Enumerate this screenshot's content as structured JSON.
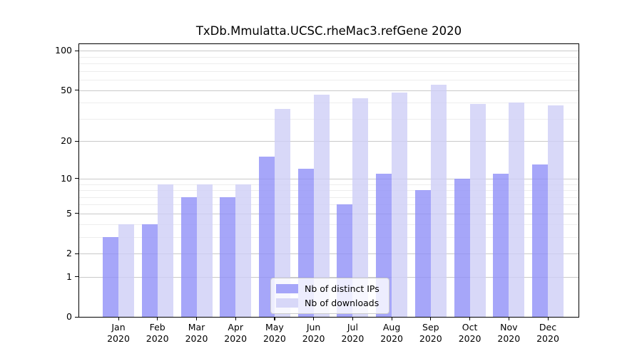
{
  "chart_data": {
    "type": "bar",
    "title": "TxDb.Mmulatta.UCSC.rheMac3.refGene 2020",
    "categories": [
      "Jan 2020",
      "Feb 2020",
      "Mar 2020",
      "Apr 2020",
      "May 2020",
      "Jun 2020",
      "Jul 2020",
      "Aug 2020",
      "Sep 2020",
      "Oct 2020",
      "Nov 2020",
      "Dec 2020"
    ],
    "series": [
      {
        "name": "Nb of distinct IPs",
        "color": "#9090f8",
        "fill_opacity": 0.8,
        "values": [
          3,
          4,
          7,
          7,
          15,
          12,
          6,
          11,
          8,
          10,
          11,
          13
        ]
      },
      {
        "name": "Nb of downloads",
        "color": "#cecef6",
        "fill_opacity": 0.8,
        "values": [
          4,
          9,
          9,
          9,
          36,
          46,
          43,
          48,
          55,
          39,
          40,
          38
        ]
      }
    ],
    "xlabel": "",
    "ylabel": "",
    "yscale": "log1p",
    "y_ticks": [
      0,
      1,
      2,
      5,
      10,
      20,
      50,
      100
    ],
    "y_minor_ticks": [
      3,
      4,
      6,
      7,
      8,
      9,
      30,
      40,
      60,
      70,
      80,
      90
    ],
    "ylim": [
      0,
      112
    ],
    "grid": true,
    "legend_position": "lower-center-inside",
    "colors": {
      "major_grid": "#c9c9c9",
      "minor_grid": "#ededed",
      "spine": "#000000",
      "text": "#000000"
    }
  }
}
